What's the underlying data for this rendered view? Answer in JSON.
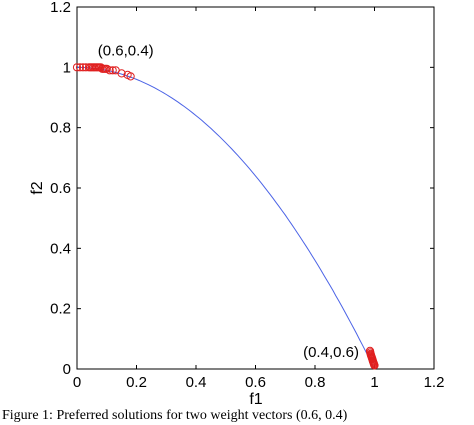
{
  "caption": "Figure 1: Preferred solutions for two weight vectors (0.6, 0.4)",
  "chart_data": {
    "type": "scatter",
    "title": "",
    "xlabel": "f1",
    "ylabel": "f2",
    "xlim": [
      0,
      1.2
    ],
    "ylim": [
      0,
      1.2
    ],
    "xticks": [
      "0",
      "0.2",
      "0.4",
      "0.6",
      "0.8",
      "1",
      "1.2"
    ],
    "yticks": [
      "0",
      "0.2",
      "0.4",
      "0.6",
      "0.8",
      "1",
      "1.2"
    ],
    "grid": false,
    "legend": "none",
    "front": {
      "color": "#4b63e6",
      "x": [
        0,
        0.1,
        0.2,
        0.3,
        0.4,
        0.5,
        0.6,
        0.7,
        0.8,
        0.9,
        1.0
      ],
      "y": [
        1.0,
        0.99,
        0.96,
        0.91,
        0.84,
        0.75,
        0.64,
        0.51,
        0.36,
        0.19,
        0.0
      ]
    },
    "clusters": [
      {
        "color": "#e02020",
        "x": [
          0.0,
          0.01,
          0.02,
          0.03,
          0.04,
          0.045,
          0.05,
          0.055,
          0.06,
          0.065,
          0.07,
          0.075,
          0.08,
          0.085,
          0.09,
          0.095,
          0.1,
          0.11,
          0.12,
          0.13,
          0.15,
          0.17,
          0.18
        ],
        "y": [
          1.0,
          1.0,
          1.0,
          1.0,
          1.0,
          1.0,
          1.0,
          1.0,
          1.0,
          1.0,
          1.0,
          1.0,
          1.0,
          0.995,
          0.995,
          0.995,
          0.995,
          0.99,
          0.99,
          0.99,
          0.98,
          0.975,
          0.97
        ]
      },
      {
        "color": "#e02020",
        "x": [
          0.985,
          0.986,
          0.987,
          0.988,
          0.989,
          0.99,
          0.991,
          0.992,
          0.993,
          0.994,
          0.995,
          0.996,
          0.997,
          0.998,
          0.999,
          1.0
        ],
        "y": [
          0.06,
          0.055,
          0.05,
          0.047,
          0.044,
          0.041,
          0.038,
          0.035,
          0.032,
          0.029,
          0.026,
          0.023,
          0.02,
          0.017,
          0.014,
          0.012
        ]
      }
    ],
    "annotations": [
      {
        "text": "(0.6,0.4)",
        "x": 0.07,
        "y": 1.04
      },
      {
        "text": "(0.4,0.6)",
        "x": 0.76,
        "y": 0.04
      }
    ]
  }
}
